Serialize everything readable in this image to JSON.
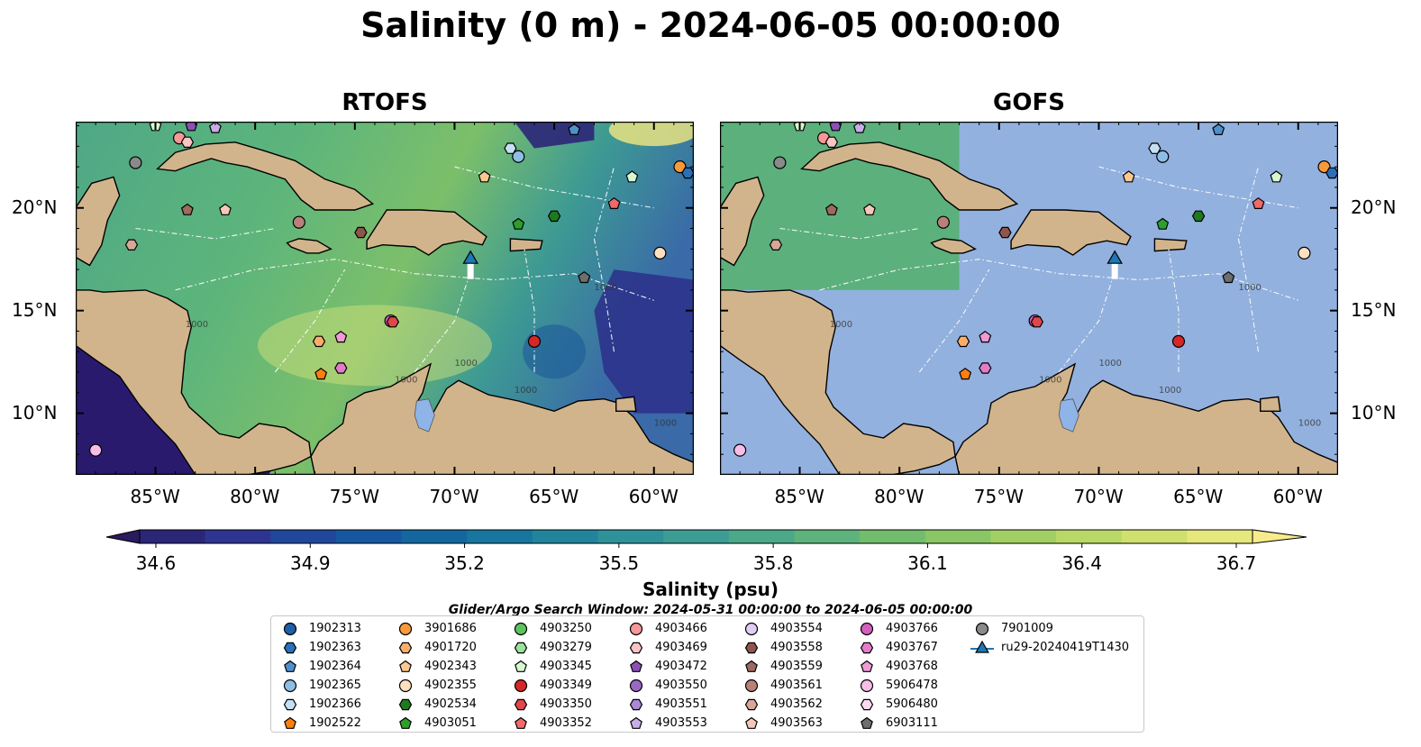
{
  "title": "Salinity (0 m) - 2024-06-05 00:00:00",
  "panels": [
    {
      "title": "RTOFS",
      "model_covered": true
    },
    {
      "title": "GOFS",
      "model_covered": false
    }
  ],
  "x_ticks": [
    "85°W",
    "80°W",
    "75°W",
    "70°W",
    "65°W",
    "60°W"
  ],
  "y_ticks": [
    "20°N",
    "15°N",
    "10°N"
  ],
  "colorbar": {
    "ticks": [
      "34.6",
      "34.9",
      "35.2",
      "35.5",
      "35.8",
      "36.1",
      "36.4",
      "36.7"
    ],
    "label": "Salinity (psu)",
    "colors": [
      "#2a1a5e",
      "#2c2678",
      "#2d3590",
      "#21479b",
      "#17579f",
      "#14679e",
      "#17769d",
      "#21849c",
      "#2f919a",
      "#3d9c93",
      "#4ba888",
      "#5db37b",
      "#72bd6d",
      "#8ac665",
      "#a2cf63",
      "#bad867",
      "#d0e06f",
      "#e6e77d",
      "#f7eb8c"
    ]
  },
  "search_window": "Glider/Argo Search Window: 2024-05-31 00:00:00 to 2024-06-05 00:00:00",
  "colors": {
    "land": "#d2b48c",
    "ocean_gofs": "#93b1de",
    "lake": "#8fb4e8",
    "glider": "#1f77b4"
  },
  "legend": [
    {
      "id": "1902313",
      "marker": "circle",
      "color": "#1f5fa8"
    },
    {
      "id": "1902363",
      "marker": "hexagon",
      "color": "#2a6fba"
    },
    {
      "id": "1902364",
      "marker": "pentagon",
      "color": "#4f8fcc"
    },
    {
      "id": "1902365",
      "marker": "circle",
      "color": "#8ebde6"
    },
    {
      "id": "1902366",
      "marker": "hexagon",
      "color": "#c5e0f5"
    },
    {
      "id": "1902522",
      "marker": "pentagon",
      "color": "#ff7f0e"
    },
    {
      "id": "3901686",
      "marker": "circle",
      "color": "#f89a3a"
    },
    {
      "id": "4901720",
      "marker": "hexagon",
      "color": "#fbae6b"
    },
    {
      "id": "4902343",
      "marker": "pentagon",
      "color": "#fbc890"
    },
    {
      "id": "4902355",
      "marker": "circle",
      "color": "#fde0c0"
    },
    {
      "id": "4902534",
      "marker": "hexagon",
      "color": "#1f7a1f"
    },
    {
      "id": "4903051",
      "marker": "pentagon",
      "color": "#2ca02c"
    },
    {
      "id": "4903250",
      "marker": "circle",
      "color": "#5cc35c"
    },
    {
      "id": "4903279",
      "marker": "hexagon",
      "color": "#9be39b"
    },
    {
      "id": "4903345",
      "marker": "pentagon",
      "color": "#d7f7d0"
    },
    {
      "id": "4903349",
      "marker": "circle",
      "color": "#d62728"
    },
    {
      "id": "4903350",
      "marker": "hexagon",
      "color": "#e0474a"
    },
    {
      "id": "4903352",
      "marker": "pentagon",
      "color": "#f06a6a"
    },
    {
      "id": "4903466",
      "marker": "circle",
      "color": "#f59898"
    },
    {
      "id": "4903469",
      "marker": "hexagon",
      "color": "#fbc4c4"
    },
    {
      "id": "4903472",
      "marker": "pentagon",
      "color": "#8c50b4"
    },
    {
      "id": "4903550",
      "marker": "circle",
      "color": "#9a68c4"
    },
    {
      "id": "4903551",
      "marker": "hexagon",
      "color": "#a988d4"
    },
    {
      "id": "4903553",
      "marker": "pentagon",
      "color": "#c7aee8"
    },
    {
      "id": "4903554",
      "marker": "circle",
      "color": "#e0cef4"
    },
    {
      "id": "4903558",
      "marker": "hexagon",
      "color": "#8c564b"
    },
    {
      "id": "4903559",
      "marker": "pentagon",
      "color": "#9c6a5e"
    },
    {
      "id": "4903561",
      "marker": "circle",
      "color": "#b9807a"
    },
    {
      "id": "4903562",
      "marker": "hexagon",
      "color": "#d8a896"
    },
    {
      "id": "4903563",
      "marker": "pentagon",
      "color": "#f4c8b8"
    },
    {
      "id": "4903766",
      "marker": "circle",
      "color": "#d45fbd"
    },
    {
      "id": "4903767",
      "marker": "hexagon",
      "color": "#e27cc9"
    },
    {
      "id": "4903768",
      "marker": "pentagon",
      "color": "#f09ad6"
    },
    {
      "id": "5906478",
      "marker": "circle",
      "color": "#f7bde6"
    },
    {
      "id": "5906480",
      "marker": "hexagon",
      "color": "#fcdaf1"
    },
    {
      "id": "6903111",
      "marker": "pentagon",
      "color": "#6e6e6e"
    },
    {
      "id": "7901009",
      "marker": "circle",
      "color": "#8a8a8a"
    },
    {
      "id": "ru29-20240419T1430",
      "marker": "triangle-line",
      "color": "#1f77b4"
    }
  ],
  "floats": [
    {
      "id": "5906478",
      "lon": -88.0,
      "lat": 8.2
    },
    {
      "id": "7901009",
      "lon": -86.0,
      "lat": 22.2
    },
    {
      "id": "4903562",
      "lon": -86.2,
      "lat": 18.2
    },
    {
      "id": "4903345",
      "lon": -85.0,
      "lat": 24.0
    },
    {
      "id": "4903472",
      "lon": -83.2,
      "lat": 24.0
    },
    {
      "id": "4903553",
      "lon": -82.0,
      "lat": 23.9
    },
    {
      "id": "4903466",
      "lon": -83.8,
      "lat": 23.4
    },
    {
      "id": "4903469",
      "lon": -83.4,
      "lat": 23.2
    },
    {
      "id": "4903559",
      "lon": -83.4,
      "lat": 19.9
    },
    {
      "id": "4903563",
      "lon": -81.5,
      "lat": 19.9
    },
    {
      "id": "4903561",
      "lon": -77.8,
      "lat": 19.3
    },
    {
      "id": "4903558",
      "lon": -74.7,
      "lat": 18.8
    },
    {
      "id": "1902366",
      "lon": -67.2,
      "lat": 22.9
    },
    {
      "id": "1902365",
      "lon": -66.8,
      "lat": 22.5
    },
    {
      "id": "1902364",
      "lon": -64.0,
      "lat": 23.8
    },
    {
      "id": "4902343",
      "lon": -68.5,
      "lat": 21.5
    },
    {
      "id": "3901686",
      "lon": -58.7,
      "lat": 22.0
    },
    {
      "id": "1902363",
      "lon": -58.3,
      "lat": 21.7
    },
    {
      "id": "4903345",
      "lon": -61.1,
      "lat": 21.5
    },
    {
      "id": "4903352",
      "lon": -62.0,
      "lat": 20.2
    },
    {
      "id": "4903051",
      "lon": -66.8,
      "lat": 19.2
    },
    {
      "id": "4902534",
      "lon": -65.0,
      "lat": 19.6
    },
    {
      "id": "4902355",
      "lon": -59.7,
      "lat": 17.8
    },
    {
      "id": "6903111",
      "lon": -63.5,
      "lat": 16.6
    },
    {
      "id": "4903766",
      "lon": -73.2,
      "lat": 14.5
    },
    {
      "id": "4903350",
      "lon": -73.1,
      "lat": 14.45
    },
    {
      "id": "4901720",
      "lon": -76.8,
      "lat": 13.5
    },
    {
      "id": "4903768",
      "lon": -75.7,
      "lat": 13.7
    },
    {
      "id": "1902522",
      "lon": -76.7,
      "lat": 11.9
    },
    {
      "id": "4903767",
      "lon": -75.7,
      "lat": 12.2
    },
    {
      "id": "4903349",
      "lon": -66.0,
      "lat": 13.5
    }
  ],
  "glider": {
    "id": "ru29-20240419T1430",
    "lon": -69.2,
    "lat": 17.5
  },
  "bathymetry_labels": [
    "1000",
    "1000",
    "1000",
    "1000",
    "1000",
    "1000"
  ]
}
